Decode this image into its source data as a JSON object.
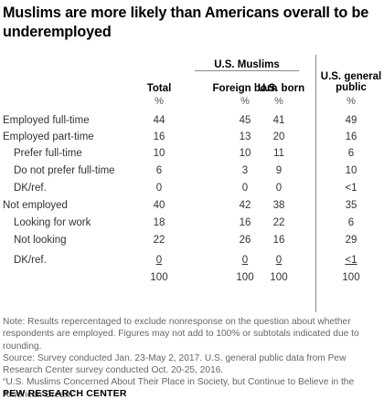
{
  "title": "Muslims are more likely than Americans overall to be underemployed",
  "group_header": "U.S. Muslims",
  "columns": [
    {
      "label": "Total",
      "unit": "%"
    },
    {
      "label": "Foreign born",
      "unit": "%"
    },
    {
      "label": "U.S. born",
      "unit": "%"
    },
    {
      "label": "U.S. general public",
      "unit": "%"
    }
  ],
  "rows": [
    {
      "label": "Employed full-time",
      "values": [
        "44",
        "45",
        "41",
        "49"
      ]
    },
    {
      "label": "Employed part-time",
      "values": [
        "16",
        "13",
        "20",
        "16"
      ]
    },
    {
      "label": "Prefer full-time",
      "values": [
        "10",
        "10",
        "11",
        "6"
      ]
    },
    {
      "label": "Do not prefer full-time",
      "values": [
        "6",
        "3",
        "9",
        "10"
      ]
    },
    {
      "label": "DK/ref.",
      "values": [
        "0",
        "0",
        "0",
        "<1"
      ]
    },
    {
      "label": "Not employed",
      "values": [
        "40",
        "42",
        "38",
        "35"
      ]
    },
    {
      "label": "Looking for work",
      "values": [
        "18",
        "16",
        "22",
        "6"
      ]
    },
    {
      "label": "Not looking",
      "values": [
        "22",
        "26",
        "16",
        "29"
      ]
    },
    {
      "label": "DK/ref.",
      "values": [
        "0",
        "0",
        "0",
        "<1"
      ]
    },
    {
      "label": "",
      "values": [
        "100",
        "100",
        "100",
        "100"
      ]
    }
  ],
  "notes": {
    "note": "Note: Results repercentaged to exclude nonresponse on the question about whether respondents are employed. Figures may not add to 100% or subtotals indicated due to rounding.",
    "source": "Source: Survey conducted Jan. 23-May 2, 2017. U.S. general public data from Pew Research Center survey conducted Oct. 20-25, 2016.",
    "report": "“U.S. Muslims Concerned About Their Place in Society, but Continue to Believe in the American Dream”"
  },
  "brand": "PEW RESEARCH CENTER"
}
